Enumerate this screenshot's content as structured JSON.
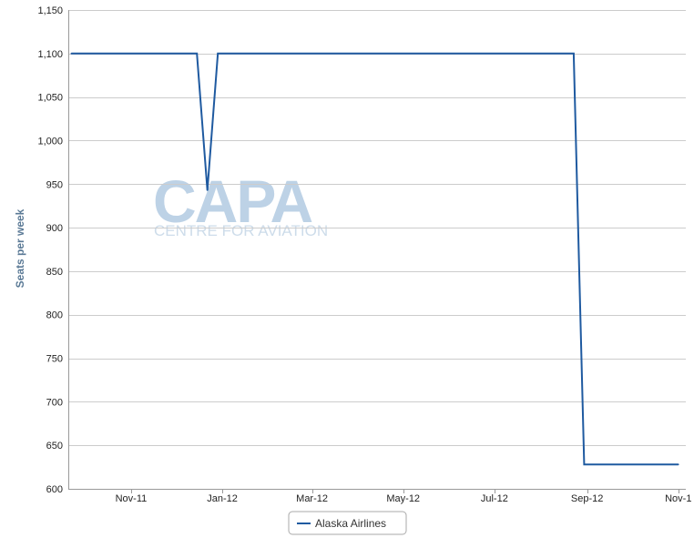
{
  "watermark": {
    "brand": "CAPA",
    "tagline": "CENTRE FOR AVIATION"
  },
  "colors": {
    "series": "#1f5aa0",
    "grid": "#cccccc",
    "axis_label": "#5b7a96"
  },
  "chart_data": {
    "type": "line",
    "ylabel": "Seats per week",
    "xlabel": "",
    "ylim": [
      600,
      1150
    ],
    "yticks": [
      600,
      650,
      700,
      750,
      800,
      850,
      900,
      950,
      1000,
      1050,
      1100,
      1150
    ],
    "ytick_labels": [
      "600",
      "650",
      "700",
      "750",
      "800",
      "850",
      "900",
      "950",
      "1,000",
      "1,050",
      "1,100",
      "1,150"
    ],
    "xlim": [
      "2011-09-20",
      "2012-11-06"
    ],
    "xticks": [
      {
        "date": "2011-11-01",
        "label": "Nov-11"
      },
      {
        "date": "2012-01-01",
        "label": "Jan-12"
      },
      {
        "date": "2012-03-01",
        "label": "Mar-12"
      },
      {
        "date": "2012-05-01",
        "label": "May-12"
      },
      {
        "date": "2012-07-01",
        "label": "Jul-12"
      },
      {
        "date": "2012-09-01",
        "label": "Sep-12"
      },
      {
        "date": "2012-11-01",
        "label": "Nov-1"
      }
    ],
    "grid": true,
    "legend": "bottom-center",
    "series": [
      {
        "name": "Alaska Airlines",
        "color": "#1f5aa0",
        "points": [
          {
            "x": "2011-09-22",
            "y": 1100
          },
          {
            "x": "2011-12-15",
            "y": 1100
          },
          {
            "x": "2011-12-22",
            "y": 943
          },
          {
            "x": "2011-12-29",
            "y": 1100
          },
          {
            "x": "2012-08-23",
            "y": 1100
          },
          {
            "x": "2012-08-30",
            "y": 628
          },
          {
            "x": "2012-11-01",
            "y": 628
          }
        ]
      }
    ]
  }
}
